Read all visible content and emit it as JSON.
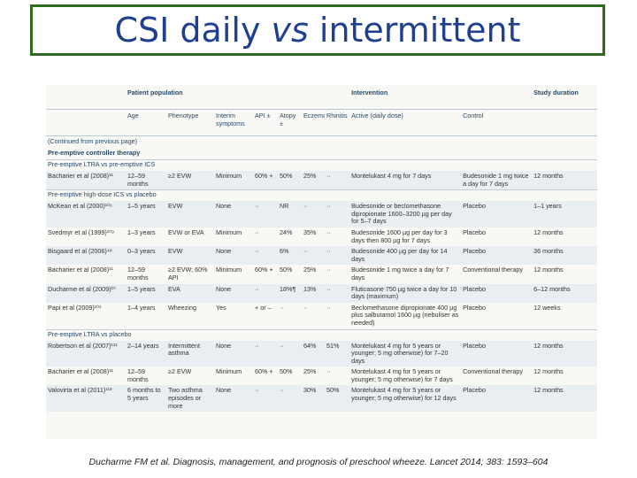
{
  "title": {
    "prefix": "CSI daily ",
    "italic": "vs",
    "suffix": " intermittent"
  },
  "table": {
    "group_headers": {
      "population": "Patient population",
      "intervention": "Intervention",
      "duration": "Study duration"
    },
    "columns": [
      "",
      "Age",
      "Phenotype",
      "Interim symptoms",
      "API ± ",
      "Atopy ±",
      "Eczema",
      "Rhinitis",
      "Active (daily dose)",
      "Control",
      ""
    ],
    "continued": "(Continued from previous page)",
    "section": "Pre-emptive controller therapy",
    "groups": [
      {
        "label": "Pre-emptive LTRA vs pre-emptive ICS",
        "rows": [
          [
            "Bacharier et al (2008)¹¹",
            "12–59 months",
            "≥2 EVW",
            "Minimum",
            "60% +",
            "50%",
            "25%",
            "··",
            "Montelukast 4 mg for 7 days",
            "Budesonide 1 mg twice a day for 7 days",
            "12 months"
          ]
        ]
      },
      {
        "label": "Pre-emptive high-dose ICS vs placebo",
        "rows": [
          [
            "McKean et al (2000)¹⁰⁶",
            "1–5 years",
            "EVW",
            "None",
            "··",
            "NR",
            "··",
            "··",
            "Budesonide or beclomethasone dipropionate 1600–3200 µg per day for 5–7 days",
            "Placebo",
            "1–1 years"
          ],
          [
            "Svedmyr et al (1999)¹⁰⁹",
            "1–3 years",
            "EVW or EVA",
            "Minimum",
            "··",
            "24%",
            "35%",
            "··",
            "Budesonide 1600 µg per day for 3 days then 800 µg for 7 days",
            "Placebo",
            "12 months"
          ],
          [
            "Bisgaard et al (2006)⁴⁸",
            "0–3 years",
            "EVW",
            "None",
            "··",
            "6%",
            "··",
            "··",
            "Budesonide 400 µg per day for 14 days",
            "Placebo",
            "36 months"
          ],
          [
            "Bacharier et al (2008)¹¹",
            "12–59 months",
            "≥2 EVW; 60% API",
            "Minimum",
            "60% +",
            "50%",
            "25%",
            "··",
            "Budesonide 1 mg twice a day for 7 days",
            "Conventional therapy",
            "12 months"
          ],
          [
            "Ducharme et al (2009)¹⁰",
            "1–5 years",
            "EVA",
            "None",
            "··",
            "18%¶",
            "13%",
            "··",
            "Fluticasone 750 µg twice a day for 10 days (maximum)",
            "Placebo",
            "6–12 months"
          ],
          [
            "Papi et al (2009)¹⁰¹",
            "1–4 years",
            "Wheezing",
            "Yes",
            "+ or –",
            "··",
            "··",
            "··",
            "Beclomethasone dipropionate 400 µg plus salbutamol 1600 µg (nebuliser as needed)",
            "Placebo",
            "12 weeks"
          ]
        ]
      },
      {
        "label": "Pre-emptive LTRA vs placebo",
        "rows": [
          [
            "Robertson et al (2007)¹¹¹",
            "2–14 years",
            "Intermittent asthma",
            "None",
            "··",
            "··",
            "64%",
            "51%",
            "Montelukast 4 mg for 5 years or younger; 5 mg otherwise) for 7–20 days",
            "Placebo",
            "12 months"
          ],
          [
            "Bacharier et al (2008)¹¹",
            "12–59 months",
            "≥2 EVW",
            "Minimum",
            "60% +",
            "50%",
            "25%",
            "··",
            "Montelukast 4 mg for 5 years or younger; 5 mg otherwise) for 7 days",
            "Conventional therapy",
            "12 months"
          ],
          [
            "Valovirta et al (2011)¹¹³",
            "6 months to 5 years",
            "Two asthma episodes or more",
            "None",
            "··",
            "··",
            "30%",
            "50%",
            "Montelukast 4 mg for 5 years or younger; 5 mg otherwise) for 12 days",
            "Placebo",
            "12 months"
          ]
        ]
      }
    ]
  },
  "citation": "Ducharme FM et al. Diagnosis, management, and prognosis of preschool wheeze. Lancet 2014; 383: 1593–604"
}
